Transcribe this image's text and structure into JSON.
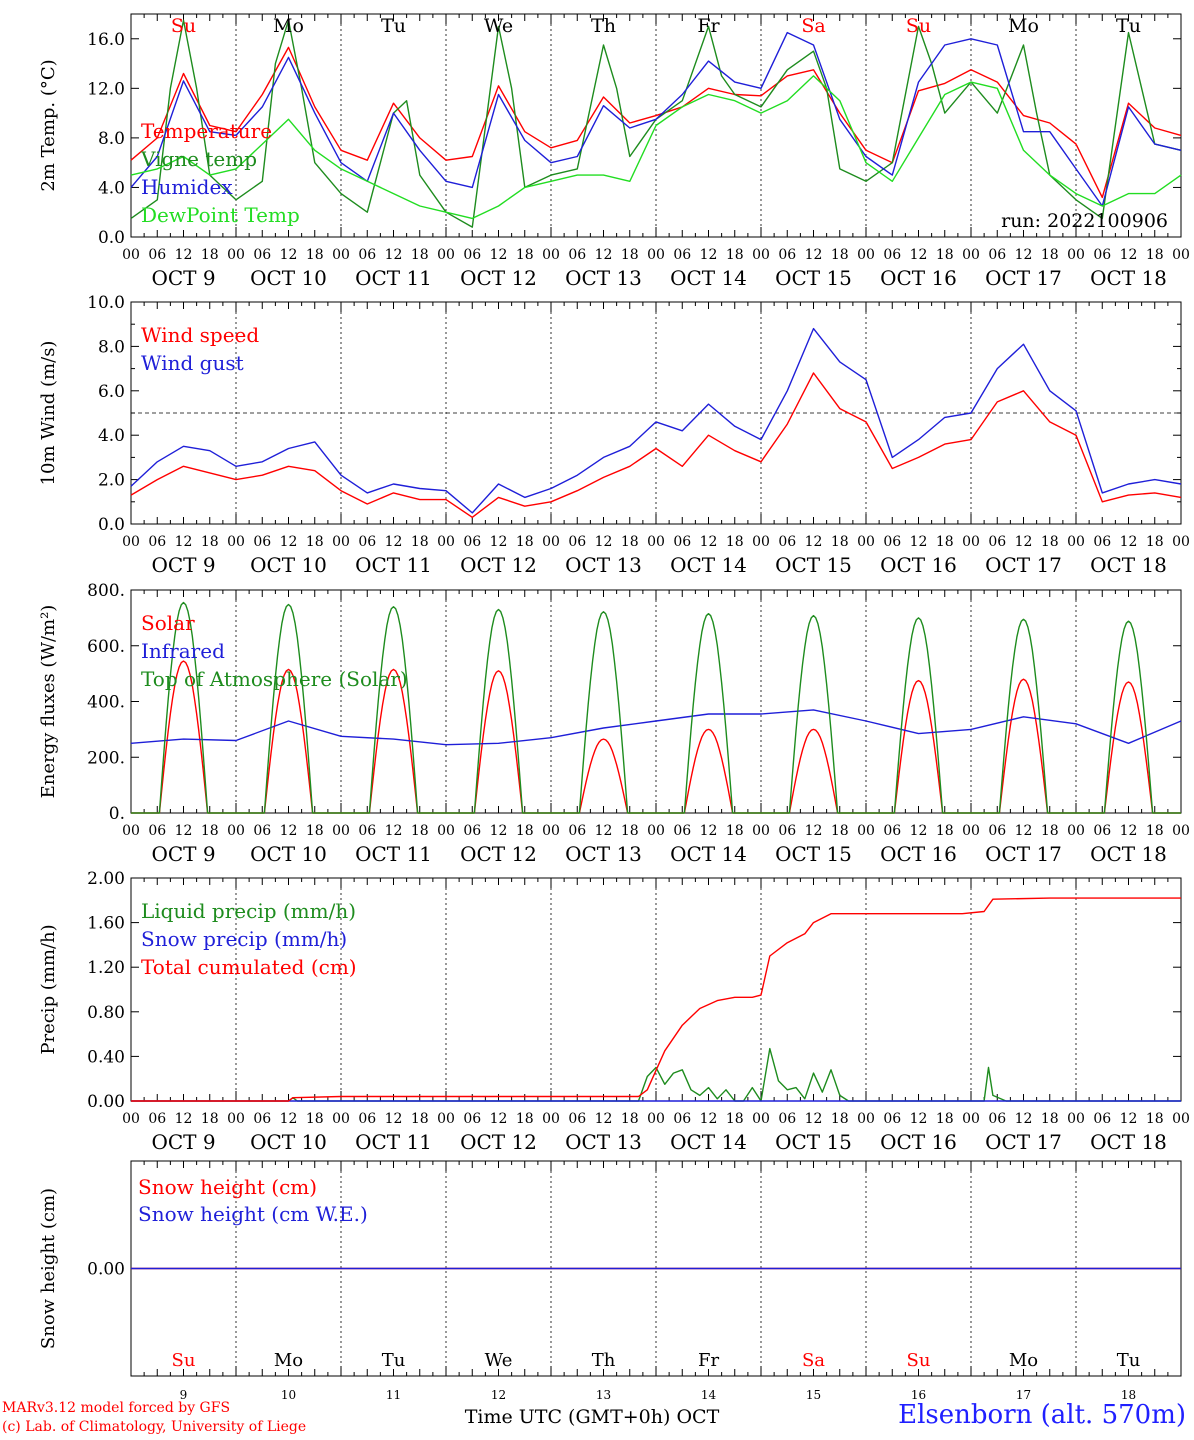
{
  "colors": {
    "red": "#ff0000",
    "blue": "#1f1fd8",
    "dark_green": "#1e8c1e",
    "light_green": "#22dd22",
    "purple": "#8030a0",
    "sat_label": "#ff2020",
    "weekday_label": "#000000"
  },
  "timeline": {
    "date_labels": [
      "OCT  9",
      "OCT 10",
      "OCT 11",
      "OCT 12",
      "OCT 13",
      "OCT 14",
      "OCT 15",
      "OCT 16",
      "OCT 17",
      "OCT 18"
    ],
    "hour_labels": [
      "00",
      "06",
      "12",
      "18"
    ],
    "final_hour_label": "00",
    "weekdays": [
      {
        "label": "Su",
        "color": "#ff0000"
      },
      {
        "label": "Mo",
        "color": "#000000"
      },
      {
        "label": "Tu",
        "color": "#000000"
      },
      {
        "label": "We",
        "color": "#000000"
      },
      {
        "label": "Th",
        "color": "#000000"
      },
      {
        "label": "Fr",
        "color": "#000000"
      },
      {
        "label": "Sa",
        "color": "#ff0000"
      },
      {
        "label": "Su",
        "color": "#ff0000"
      },
      {
        "label": "Mo",
        "color": "#000000"
      },
      {
        "label": "Tu",
        "color": "#000000"
      }
    ],
    "day_numbers": [
      "9",
      "10",
      "11",
      "12",
      "13",
      "14",
      "15",
      "16",
      "17",
      "18"
    ]
  },
  "chart_data": [
    {
      "type": "line",
      "ylabel": "2m Temp. (°C)",
      "ylim": [
        0,
        18
      ],
      "yticks": [
        "0.0",
        "4.0",
        "8.0",
        "12.0",
        "16.0"
      ],
      "yticks_values": [
        0,
        4,
        8,
        12,
        16
      ],
      "x_unit": "hours since OCT 9 00 UTC",
      "annotation": "run: 2022100906",
      "series": [
        {
          "name": "Temperature",
          "color": "#ff0000",
          "x": [
            0,
            6,
            12,
            18,
            24,
            30,
            36,
            42,
            48,
            54,
            60,
            66,
            72,
            78,
            84,
            90,
            96,
            102,
            108,
            114,
            120,
            126,
            132,
            138,
            144,
            150,
            156,
            162,
            168,
            174,
            180,
            186,
            192,
            198,
            204,
            210,
            216,
            222,
            228,
            234,
            240
          ],
          "values": [
            6.2,
            8.0,
            13.2,
            9.0,
            8.5,
            11.5,
            15.3,
            10.5,
            7.0,
            6.2,
            10.8,
            8.0,
            6.2,
            6.5,
            12.2,
            8.5,
            7.2,
            7.8,
            11.3,
            9.2,
            9.8,
            10.5,
            12.0,
            11.5,
            11.4,
            13.0,
            13.5,
            10.0,
            7.0,
            6.0,
            11.8,
            12.4,
            13.5,
            12.5,
            9.8,
            9.2,
            7.5,
            3.2,
            10.8,
            8.8,
            8.2
          ]
        },
        {
          "name": "Vigne temp",
          "color": "#1e8c1e",
          "x": [
            0,
            6,
            9,
            12,
            15,
            18,
            24,
            30,
            33,
            36,
            39,
            42,
            48,
            54,
            60,
            63,
            66,
            72,
            78,
            84,
            87,
            90,
            96,
            102,
            108,
            111,
            114,
            120,
            126,
            132,
            135,
            138,
            144,
            150,
            156,
            159,
            162,
            168,
            174,
            180,
            183,
            186,
            192,
            198,
            204,
            207,
            210,
            216,
            222,
            228,
            234,
            240
          ],
          "values": [
            1.5,
            3.0,
            12.0,
            17.5,
            12.0,
            5.0,
            3.0,
            4.5,
            14.0,
            17.5,
            12.0,
            6.0,
            3.5,
            2.0,
            10.0,
            11.0,
            5.0,
            2.0,
            0.8,
            17.0,
            12.0,
            4.0,
            5.0,
            5.5,
            15.5,
            12.0,
            6.5,
            9.5,
            11.0,
            17.0,
            13.0,
            11.5,
            10.5,
            13.5,
            15.0,
            12.0,
            5.5,
            4.5,
            6.0,
            17.0,
            14.0,
            10.0,
            12.5,
            10.0,
            15.5,
            10.0,
            5.0,
            3.0,
            1.5,
            16.5,
            7.5,
            7.0
          ]
        },
        {
          "name": "Humidex",
          "color": "#1f1fd8",
          "x": [
            0,
            6,
            12,
            18,
            24,
            30,
            36,
            42,
            48,
            54,
            60,
            66,
            72,
            78,
            84,
            90,
            96,
            102,
            108,
            114,
            120,
            126,
            132,
            138,
            144,
            150,
            156,
            162,
            168,
            174,
            180,
            186,
            192,
            198,
            204,
            210,
            216,
            222,
            228,
            234,
            240
          ],
          "values": [
            4.0,
            6.5,
            12.6,
            8.5,
            8.2,
            10.5,
            14.5,
            10.0,
            6.0,
            4.5,
            10.0,
            7.0,
            4.5,
            4.0,
            11.5,
            7.8,
            6.0,
            6.5,
            10.6,
            8.8,
            9.5,
            11.5,
            14.2,
            12.5,
            12.0,
            16.5,
            15.5,
            9.5,
            6.5,
            5.0,
            12.5,
            15.5,
            16.0,
            15.5,
            8.5,
            8.5,
            5.5,
            2.5,
            10.5,
            7.5,
            7.0
          ]
        },
        {
          "name": "DewPoint Temp",
          "color": "#22dd22",
          "x": [
            0,
            6,
            12,
            18,
            24,
            30,
            36,
            42,
            48,
            54,
            60,
            66,
            72,
            78,
            84,
            90,
            96,
            102,
            108,
            114,
            120,
            126,
            132,
            138,
            144,
            150,
            156,
            162,
            168,
            174,
            180,
            186,
            192,
            198,
            204,
            210,
            216,
            222,
            228,
            234,
            240
          ],
          "values": [
            5.0,
            5.5,
            6.5,
            5.0,
            5.5,
            7.5,
            9.5,
            7.0,
            5.5,
            4.5,
            3.5,
            2.5,
            2.0,
            1.5,
            2.5,
            4.0,
            4.5,
            5.0,
            5.0,
            4.5,
            9.0,
            10.5,
            11.5,
            11.0,
            10.0,
            11.0,
            13.0,
            11.0,
            6.0,
            4.5,
            8.0,
            11.5,
            12.5,
            12.0,
            7.0,
            5.0,
            3.5,
            2.5,
            3.5,
            3.5,
            5.0
          ]
        }
      ]
    },
    {
      "type": "line",
      "ylabel": "10m Wind (m/s)",
      "ylim": [
        0,
        10
      ],
      "yticks": [
        "0.0",
        "2.0",
        "4.0",
        "6.0",
        "8.0",
        "10.0"
      ],
      "yticks_values": [
        0,
        2,
        4,
        6,
        8,
        10
      ],
      "reference_line": 5.0,
      "series": [
        {
          "name": "Wind speed",
          "color": "#ff0000",
          "x": [
            0,
            6,
            12,
            18,
            24,
            30,
            36,
            42,
            48,
            54,
            60,
            66,
            72,
            78,
            84,
            90,
            96,
            102,
            108,
            114,
            120,
            126,
            132,
            138,
            144,
            150,
            156,
            162,
            168,
            174,
            180,
            186,
            192,
            198,
            204,
            210,
            216,
            222,
            228,
            234,
            240
          ],
          "values": [
            1.3,
            2.0,
            2.6,
            2.3,
            2.0,
            2.2,
            2.6,
            2.4,
            1.5,
            0.9,
            1.4,
            1.1,
            1.1,
            0.3,
            1.2,
            0.8,
            1.0,
            1.5,
            2.1,
            2.6,
            3.4,
            2.6,
            4.0,
            3.3,
            2.8,
            4.5,
            6.8,
            5.2,
            4.6,
            2.5,
            3.0,
            3.6,
            3.8,
            5.5,
            6.0,
            4.6,
            4.0,
            1.0,
            1.3,
            1.4,
            1.2
          ]
        },
        {
          "name": "Wind gust",
          "color": "#1f1fd8",
          "x": [
            0,
            6,
            12,
            18,
            24,
            30,
            36,
            42,
            48,
            54,
            60,
            66,
            72,
            78,
            84,
            90,
            96,
            102,
            108,
            114,
            120,
            126,
            132,
            138,
            144,
            150,
            156,
            162,
            168,
            174,
            180,
            186,
            192,
            198,
            204,
            210,
            216,
            222,
            228,
            234,
            240
          ],
          "values": [
            1.7,
            2.8,
            3.5,
            3.3,
            2.6,
            2.8,
            3.4,
            3.7,
            2.2,
            1.4,
            1.8,
            1.6,
            1.5,
            0.5,
            1.8,
            1.2,
            1.6,
            2.2,
            3.0,
            3.5,
            4.6,
            4.2,
            5.4,
            4.4,
            3.8,
            6.0,
            8.8,
            7.3,
            6.5,
            3.0,
            3.8,
            4.8,
            5.0,
            7.0,
            8.1,
            6.0,
            5.1,
            1.4,
            1.8,
            2.0,
            1.8
          ]
        }
      ]
    },
    {
      "type": "line",
      "ylabel": "Energy fluxes (W/m²)",
      "ylim": [
        0,
        800
      ],
      "yticks": [
        "0.",
        "200.",
        "400.",
        "600.",
        "800."
      ],
      "yticks_values": [
        0,
        200,
        400,
        600,
        800
      ],
      "series": [
        {
          "name": "Solar",
          "color": "#ff0000",
          "kind": "daily",
          "peak_hour": 12,
          "half_width": 5.5,
          "peaks": [
            545,
            515,
            515,
            510,
            265,
            300,
            300,
            475,
            480,
            470
          ]
        },
        {
          "name": "Infrared",
          "color": "#1f1fd8",
          "x": [
            0,
            12,
            24,
            36,
            48,
            60,
            72,
            84,
            96,
            108,
            120,
            132,
            144,
            156,
            168,
            180,
            192,
            204,
            216,
            228,
            240
          ],
          "values": [
            250,
            265,
            260,
            330,
            275,
            265,
            245,
            250,
            270,
            305,
            330,
            355,
            355,
            370,
            330,
            285,
            300,
            345,
            320,
            250,
            330
          ]
        },
        {
          "name": "Top of Atmosphere (Solar)",
          "color": "#1e8c1e",
          "kind": "daily",
          "peak_hour": 12,
          "half_width": 5.5,
          "peaks": [
            755,
            748,
            740,
            730,
            722,
            715,
            708,
            700,
            695,
            688
          ]
        }
      ]
    },
    {
      "type": "line",
      "ylabel": "Precip (mm/h)",
      "ylim": [
        0,
        2
      ],
      "yticks": [
        "0.00",
        "0.40",
        "0.80",
        "1.20",
        "1.60",
        "2.00"
      ],
      "yticks_values": [
        0,
        0.4,
        0.8,
        1.2,
        1.6,
        2.0
      ],
      "series": [
        {
          "name": "Liquid precip (mm/h)",
          "color": "#1e8c1e",
          "x": [
            0,
            36,
            37,
            38,
            72,
            116,
            118,
            120,
            122,
            124,
            126,
            128,
            130,
            132,
            134,
            136,
            138,
            140,
            142,
            144,
            146,
            148,
            150,
            152,
            154,
            156,
            158,
            160,
            162,
            164,
            190,
            195,
            196,
            197,
            200,
            240
          ],
          "values": [
            0,
            0,
            0.03,
            0,
            0,
            0,
            0.22,
            0.3,
            0.15,
            0.25,
            0.28,
            0.1,
            0.05,
            0.12,
            0.02,
            0.1,
            0.0,
            0.0,
            0.12,
            0.0,
            0.47,
            0.18,
            0.1,
            0.12,
            0.02,
            0.25,
            0.08,
            0.28,
            0.05,
            0.0,
            0,
            0,
            0.3,
            0.05,
            0,
            0
          ]
        },
        {
          "name": "Snow precip (mm/h)",
          "color": "#1f1fd8",
          "x": [
            0,
            240
          ],
          "values": [
            0,
            0
          ]
        },
        {
          "name": "Total cumulated (cm)",
          "color": "#ff0000",
          "x": [
            0,
            36,
            37,
            48,
            116,
            118,
            122,
            126,
            130,
            134,
            138,
            142,
            144,
            146,
            150,
            154,
            156,
            160,
            168,
            190,
            195,
            197,
            210,
            240
          ],
          "values": [
            0,
            0,
            0.03,
            0.04,
            0.04,
            0.1,
            0.45,
            0.68,
            0.83,
            0.9,
            0.93,
            0.93,
            0.95,
            1.3,
            1.42,
            1.5,
            1.6,
            1.68,
            1.68,
            1.68,
            1.7,
            1.81,
            1.82,
            1.82
          ]
        }
      ]
    },
    {
      "type": "line",
      "ylabel": "Snow height (cm)",
      "ylim": [
        -1,
        1
      ],
      "yticks": [
        "0.00"
      ],
      "yticks_values": [
        0
      ],
      "xlabel": "Time UTC (GMT+0h) OCT",
      "series": [
        {
          "name": "Snow height (cm)",
          "color": "#ff0000",
          "x": [
            0,
            240
          ],
          "values": [
            0,
            0
          ]
        },
        {
          "name": "Snow height (cm W.E.)",
          "color": "#1f1fd8",
          "x": [
            0,
            240
          ],
          "values": [
            0,
            0
          ]
        }
      ]
    }
  ],
  "footer": {
    "credit_line1": "MARv3.12 model forced by GFS",
    "credit_line2": "(c) Lab. of Climatology, University of Liege",
    "station": "Elsenborn (alt. 570m)"
  }
}
